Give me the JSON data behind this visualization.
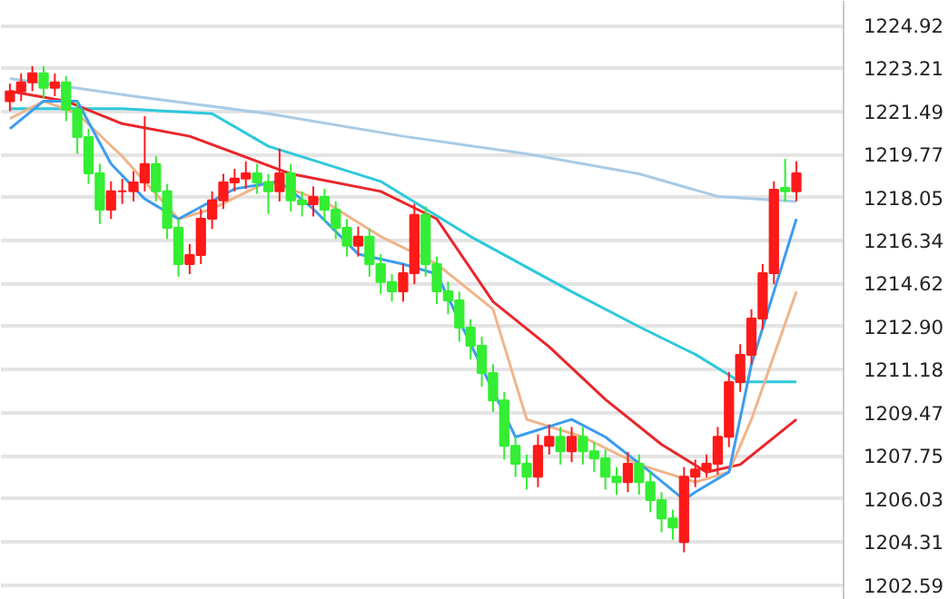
{
  "chart_data": {
    "type": "candlestick",
    "categories": [
      null,
      null,
      null,
      null,
      null,
      null,
      null,
      null,
      null,
      null,
      null,
      null,
      null,
      null,
      null,
      null,
      null,
      null,
      null,
      null,
      null,
      null,
      null,
      null,
      null,
      null,
      null,
      null,
      null,
      null,
      null,
      null,
      null,
      null,
      null,
      null,
      null,
      null,
      null,
      null,
      null,
      null,
      null,
      null,
      null,
      null,
      null,
      null,
      null,
      null,
      null,
      null,
      null,
      null,
      null,
      null,
      null,
      null,
      null,
      null,
      null,
      null,
      null,
      null,
      null,
      null,
      null,
      null,
      null,
      null,
      null
    ],
    "ohlc": [
      [
        1221.9,
        1222.6,
        1221.5,
        1222.29
      ],
      [
        1222.29,
        1223.0,
        1221.9,
        1222.65
      ],
      [
        1222.65,
        1223.3,
        1222.3,
        1223.01
      ],
      [
        1223.01,
        1223.3,
        1222.0,
        1222.43
      ],
      [
        1222.43,
        1223.0,
        1222.1,
        1222.65
      ],
      [
        1222.65,
        1222.9,
        1221.1,
        1221.56
      ],
      [
        1221.56,
        1221.9,
        1219.8,
        1220.47
      ],
      [
        1220.47,
        1220.8,
        1218.6,
        1219.02
      ],
      [
        1219.02,
        1219.4,
        1217.0,
        1217.57
      ],
      [
        1217.57,
        1218.7,
        1217.2,
        1218.3
      ],
      [
        1218.3,
        1218.8,
        1217.8,
        1218.3
      ],
      [
        1218.3,
        1219.1,
        1217.9,
        1218.66
      ],
      [
        1218.66,
        1221.3,
        1218.3,
        1219.39
      ],
      [
        1219.39,
        1219.7,
        1217.9,
        1218.3
      ],
      [
        1218.3,
        1218.6,
        1216.4,
        1216.85
      ],
      [
        1216.85,
        1217.2,
        1214.9,
        1215.4
      ],
      [
        1215.4,
        1216.2,
        1215.0,
        1215.76
      ],
      [
        1215.76,
        1217.6,
        1215.4,
        1217.21
      ],
      [
        1217.21,
        1218.3,
        1216.8,
        1217.94
      ],
      [
        1217.94,
        1219.0,
        1217.6,
        1218.66
      ],
      [
        1218.66,
        1219.2,
        1218.3,
        1218.81
      ],
      [
        1218.81,
        1219.5,
        1218.4,
        1219.02
      ],
      [
        1219.02,
        1219.4,
        1218.2,
        1218.66
      ],
      [
        1218.66,
        1219.0,
        1217.4,
        1218.3
      ],
      [
        1218.3,
        1220.0,
        1217.9,
        1219.02
      ],
      [
        1219.02,
        1219.4,
        1217.5,
        1217.94
      ],
      [
        1217.94,
        1218.3,
        1217.3,
        1217.79
      ],
      [
        1217.79,
        1218.5,
        1217.3,
        1218.08
      ],
      [
        1218.08,
        1218.4,
        1217.1,
        1217.57
      ],
      [
        1217.57,
        1217.9,
        1216.4,
        1216.85
      ],
      [
        1216.85,
        1217.2,
        1215.7,
        1216.13
      ],
      [
        1216.13,
        1216.9,
        1215.7,
        1216.49
      ],
      [
        1216.49,
        1216.8,
        1214.9,
        1215.4
      ],
      [
        1215.4,
        1215.8,
        1214.2,
        1214.68
      ],
      [
        1214.68,
        1215.0,
        1213.9,
        1214.31
      ],
      [
        1214.31,
        1215.4,
        1213.9,
        1215.04
      ],
      [
        1215.04,
        1217.8,
        1214.6,
        1217.36
      ],
      [
        1217.36,
        1217.7,
        1214.9,
        1215.4
      ],
      [
        1215.4,
        1215.7,
        1213.8,
        1214.31
      ],
      [
        1214.31,
        1214.7,
        1213.4,
        1213.95
      ],
      [
        1213.95,
        1214.3,
        1212.3,
        1212.86
      ],
      [
        1212.86,
        1213.2,
        1211.6,
        1212.14
      ],
      [
        1212.14,
        1212.5,
        1210.5,
        1211.05
      ],
      [
        1211.05,
        1211.4,
        1209.5,
        1209.96
      ],
      [
        1209.96,
        1210.3,
        1207.6,
        1208.15
      ],
      [
        1208.15,
        1208.5,
        1206.9,
        1207.43
      ],
      [
        1207.43,
        1207.8,
        1206.4,
        1206.92
      ],
      [
        1206.92,
        1208.6,
        1206.5,
        1208.15
      ],
      [
        1208.15,
        1209.0,
        1207.8,
        1208.51
      ],
      [
        1208.51,
        1208.9,
        1207.4,
        1207.93
      ],
      [
        1207.93,
        1208.9,
        1207.5,
        1208.51
      ],
      [
        1208.51,
        1208.9,
        1207.4,
        1207.93
      ],
      [
        1207.93,
        1208.3,
        1207.1,
        1207.65
      ],
      [
        1207.65,
        1208.0,
        1206.4,
        1206.92
      ],
      [
        1206.92,
        1207.3,
        1206.2,
        1206.7
      ],
      [
        1206.7,
        1207.9,
        1206.3,
        1207.43
      ],
      [
        1207.43,
        1207.8,
        1206.2,
        1206.7
      ],
      [
        1206.7,
        1207.1,
        1205.5,
        1205.98
      ],
      [
        1205.98,
        1206.3,
        1204.7,
        1205.25
      ],
      [
        1205.25,
        1205.6,
        1204.4,
        1204.89
      ],
      [
        1204.31,
        1207.3,
        1203.9,
        1206.92
      ],
      [
        1206.92,
        1207.6,
        1206.5,
        1207.21
      ],
      [
        1207.21,
        1207.8,
        1206.9,
        1207.43
      ],
      [
        1207.43,
        1208.9,
        1207.0,
        1208.51
      ],
      [
        1208.51,
        1211.1,
        1208.1,
        1210.69
      ],
      [
        1210.69,
        1212.2,
        1210.3,
        1211.78
      ],
      [
        1211.78,
        1213.6,
        1211.4,
        1213.23
      ],
      [
        1213.23,
        1215.4,
        1212.8,
        1215.04
      ],
      [
        1215.04,
        1218.7,
        1214.6,
        1218.37
      ],
      [
        1218.44,
        1219.6,
        1217.9,
        1218.3
      ],
      [
        1218.3,
        1219.5,
        1217.9,
        1219.02
      ]
    ],
    "series": [
      {
        "type": "line",
        "color": "#a8cbe6",
        "values": [
          1222.8,
          null,
          null,
          null,
          null,
          null,
          null,
          null,
          null,
          null,
          null,
          1222.1,
          null,
          null,
          null,
          null,
          null,
          null,
          null,
          null,
          null,
          null,
          null,
          1221.4,
          null,
          null,
          null,
          null,
          null,
          null,
          null,
          null,
          null,
          null,
          null,
          1220.5,
          null,
          null,
          null,
          null,
          null,
          null,
          null,
          null,
          null,
          null,
          1219.8,
          null,
          null,
          null,
          null,
          null,
          null,
          null,
          null,
          null,
          1219.0,
          null,
          null,
          null,
          null,
          null,
          null,
          1218.1,
          null,
          null,
          null,
          null,
          null,
          null,
          1217.9
        ]
      },
      {
        "type": "line",
        "color": "#2ec8dc",
        "values": [
          1221.6,
          null,
          null,
          null,
          null,
          null,
          null,
          null,
          null,
          null,
          1221.6,
          null,
          null,
          null,
          null,
          null,
          null,
          null,
          1221.4,
          null,
          null,
          null,
          null,
          1220.1,
          null,
          null,
          null,
          null,
          null,
          null,
          null,
          null,
          null,
          1218.7,
          null,
          null,
          null,
          null,
          null,
          null,
          null,
          1216.5,
          null,
          null,
          null,
          null,
          null,
          null,
          null,
          null,
          1214.3,
          null,
          null,
          null,
          null,
          null,
          1212.9,
          null,
          null,
          null,
          null,
          1211.8,
          null,
          null,
          null,
          1210.7,
          null,
          null,
          null,
          null,
          1210.7
        ]
      },
      {
        "type": "line",
        "color": "#e8262b",
        "values": [
          1222.3,
          null,
          null,
          null,
          null,
          1221.9,
          null,
          null,
          null,
          null,
          1221.0,
          null,
          null,
          null,
          null,
          null,
          1220.5,
          null,
          null,
          null,
          null,
          null,
          null,
          null,
          null,
          1219.0,
          null,
          null,
          null,
          null,
          null,
          null,
          null,
          1218.3,
          null,
          null,
          null,
          null,
          1217.2,
          null,
          null,
          null,
          null,
          1213.9,
          null,
          null,
          null,
          null,
          1212.1,
          null,
          null,
          null,
          null,
          1210.0,
          null,
          null,
          null,
          null,
          1208.2,
          null,
          null,
          null,
          1207.1,
          null,
          null,
          1207.4,
          null,
          null,
          null,
          null,
          1209.2
        ]
      },
      {
        "type": "line",
        "color": "#f0b48a",
        "values": [
          1221.2,
          null,
          null,
          1221.9,
          null,
          null,
          1221.4,
          null,
          null,
          null,
          1219.7,
          null,
          null,
          null,
          null,
          1217.2,
          null,
          null,
          1217.6,
          null,
          null,
          null,
          null,
          1218.7,
          null,
          null,
          null,
          null,
          1217.9,
          null,
          null,
          null,
          null,
          1216.5,
          null,
          null,
          null,
          null,
          1215.4,
          null,
          null,
          null,
          null,
          1213.6,
          null,
          null,
          1209.2,
          null,
          null,
          null,
          null,
          1208.5,
          null,
          null,
          null,
          null,
          1207.4,
          null,
          null,
          null,
          null,
          1206.7,
          null,
          null,
          1207.1,
          null,
          1209.2,
          null,
          null,
          null,
          1214.3
        ]
      },
      {
        "type": "line",
        "color": "#3c9cf0",
        "values": [
          1220.8,
          null,
          null,
          1221.9,
          null,
          null,
          1221.9,
          null,
          null,
          1219.4,
          null,
          null,
          1218.0,
          null,
          null,
          1217.2,
          null,
          null,
          null,
          null,
          1218.4,
          null,
          null,
          null,
          1218.7,
          null,
          null,
          1217.6,
          null,
          null,
          null,
          1215.8,
          null,
          null,
          null,
          1215.4,
          null,
          null,
          1215.0,
          null,
          null,
          null,
          null,
          null,
          null,
          1208.5,
          null,
          null,
          null,
          null,
          1209.2,
          null,
          null,
          1208.5,
          null,
          null,
          null,
          1207.1,
          null,
          null,
          1206.0,
          1206.3,
          null,
          null,
          1207.1,
          null,
          1211.4,
          null,
          null,
          null,
          1217.2
        ]
      }
    ],
    "ylim": [
      1202.0,
      1225.9
    ],
    "yticks": [
      {
        "value": 1202.59,
        "label": "1202.59"
      },
      {
        "value": 1204.31,
        "label": "1204.31"
      },
      {
        "value": 1206.03,
        "label": "1206.03"
      },
      {
        "value": 1207.75,
        "label": "1207.75"
      },
      {
        "value": 1209.47,
        "label": "1209.47"
      },
      {
        "value": 1211.18,
        "label": "1211.18"
      },
      {
        "value": 1212.9,
        "label": "1212.90"
      },
      {
        "value": 1214.62,
        "label": "1214.62"
      },
      {
        "value": 1216.34,
        "label": "1216.34"
      },
      {
        "value": 1218.05,
        "label": "1218.05"
      },
      {
        "value": 1219.77,
        "label": "1219.77"
      },
      {
        "value": 1221.49,
        "label": "1221.49"
      },
      {
        "value": 1223.21,
        "label": "1223.21"
      },
      {
        "value": 1224.92,
        "label": "1224.92"
      }
    ],
    "grid": "y",
    "tick_labels": "y"
  }
}
